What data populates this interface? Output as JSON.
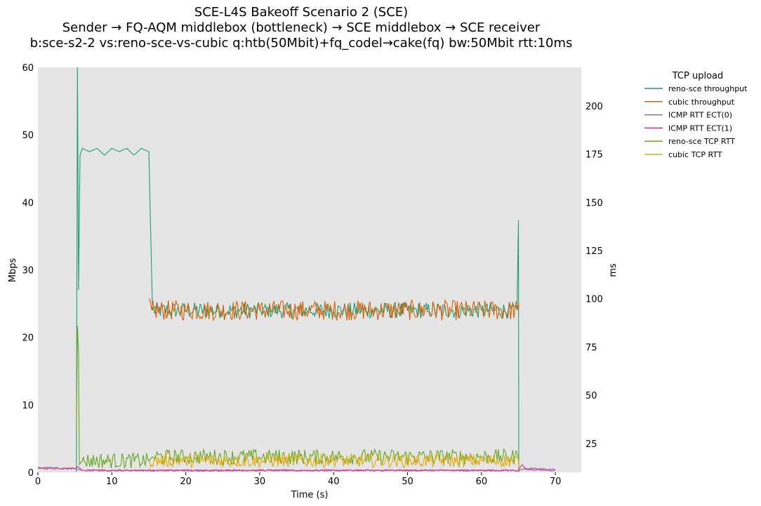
{
  "chart_data": {
    "type": "line",
    "title_lines": [
      "SCE-L4S Bakeoff Scenario 2 (SCE)",
      "Sender → FQ-AQM middlebox (bottleneck) → SCE middlebox → SCE receiver",
      "b:sce-s2-2 vs:reno-sce-vs-cubic q:htb(50Mbit)+fq_codel→cake(fq) bw:50Mbit rtt:10ms"
    ],
    "xlabel": "Time (s)",
    "ylabel_left": "Mbps",
    "ylabel_right": "ms",
    "xlim": [
      0,
      73.5
    ],
    "ylim_left": [
      0,
      60
    ],
    "ylim_right": [
      10,
      220
    ],
    "x_ticks": [
      0,
      10,
      20,
      30,
      40,
      50,
      60,
      70
    ],
    "y_ticks_left": [
      0,
      10,
      20,
      30,
      40,
      50,
      60
    ],
    "y_ticks_right": [
      25,
      50,
      75,
      100,
      125,
      150,
      175,
      200
    ],
    "grid": false,
    "legend_title": "TCP upload",
    "legend_position": "outside-right",
    "series": [
      {
        "name": "reno-sce throughput",
        "axis": "left",
        "color": "#1b9e77",
        "points": [
          [
            5.2,
            0
          ],
          [
            5.35,
            60
          ],
          [
            5.5,
            27
          ],
          [
            5.7,
            47
          ],
          [
            6,
            48
          ],
          [
            7,
            47.5
          ],
          [
            8,
            48
          ],
          [
            9,
            47
          ],
          [
            10,
            48
          ],
          [
            11,
            47.5
          ],
          [
            12,
            48
          ],
          [
            13,
            47
          ],
          [
            14,
            48
          ],
          [
            15,
            47.5
          ],
          [
            15.5,
            24
          ],
          [
            20,
            24
          ],
          [
            30,
            24
          ],
          [
            40,
            24
          ],
          [
            50,
            24
          ],
          [
            60,
            24
          ],
          [
            64.8,
            24
          ],
          [
            65,
            37.3
          ],
          [
            65.05,
            0
          ]
        ],
        "noise": 1.2
      },
      {
        "name": "cubic throughput",
        "axis": "left",
        "color": "#d95f02",
        "points": [
          [
            15.1,
            25.8
          ],
          [
            15.4,
            24
          ],
          [
            20,
            24
          ],
          [
            30,
            24
          ],
          [
            40,
            24
          ],
          [
            50,
            24
          ],
          [
            60,
            24
          ],
          [
            65,
            24
          ],
          [
            65.05,
            25
          ]
        ],
        "noise": 1.5
      },
      {
        "name": "ICMP RTT ECT(0)",
        "axis": "right",
        "color": "#7570b3",
        "points": [
          [
            0,
            12.5
          ],
          [
            5,
            12
          ],
          [
            6,
            11
          ],
          [
            20,
            11
          ],
          [
            40,
            11
          ],
          [
            60,
            11
          ],
          [
            65,
            11
          ],
          [
            66,
            12
          ],
          [
            70,
            11.5
          ]
        ],
        "noise": 0.4
      },
      {
        "name": "ICMP RTT ECT(1)",
        "axis": "right",
        "color": "#e7298a",
        "points": [
          [
            0,
            12
          ],
          [
            5,
            11.8
          ],
          [
            5.4,
            13
          ],
          [
            6,
            11
          ],
          [
            20,
            11
          ],
          [
            40,
            11
          ],
          [
            60,
            11
          ],
          [
            65,
            11
          ],
          [
            65.5,
            14
          ],
          [
            66,
            11.5
          ],
          [
            70,
            11
          ]
        ],
        "noise": 0.4
      },
      {
        "name": "reno-sce TCP RTT",
        "axis": "right",
        "color": "#66a61e",
        "points": [
          [
            5.2,
            30
          ],
          [
            5.35,
            86
          ],
          [
            5.5,
            72
          ],
          [
            5.6,
            14
          ],
          [
            6,
            16
          ],
          [
            15,
            16
          ],
          [
            15.5,
            18
          ],
          [
            20,
            18
          ],
          [
            40,
            18
          ],
          [
            60,
            18
          ],
          [
            65,
            18
          ],
          [
            65.1,
            12
          ]
        ],
        "noise": 4
      },
      {
        "name": "cubic TCP RTT",
        "axis": "right",
        "color": "#e6ab02",
        "points": [
          [
            15.1,
            16
          ],
          [
            20,
            16
          ],
          [
            40,
            16
          ],
          [
            60,
            16
          ],
          [
            65,
            16
          ],
          [
            65.1,
            12
          ]
        ],
        "noise": 3.5
      }
    ]
  }
}
